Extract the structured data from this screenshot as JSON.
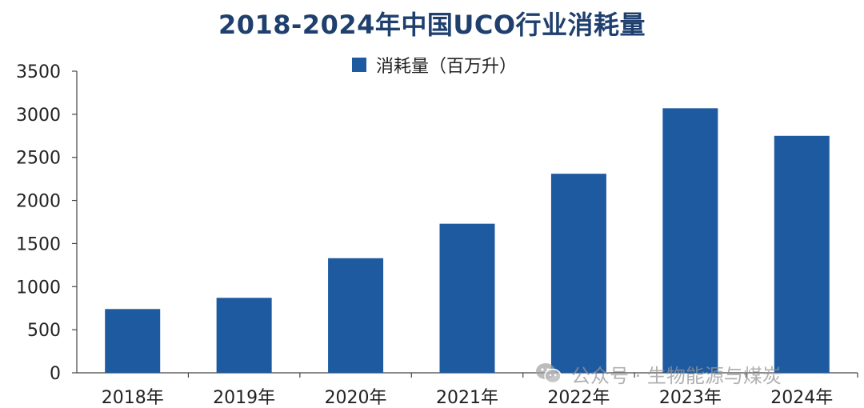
{
  "chart_data": {
    "type": "bar",
    "title": "2018-2024年中国UCO行业消耗量",
    "categories": [
      "2018年",
      "2019年",
      "2020年",
      "2021年",
      "2022年",
      "2023年",
      "2024年"
    ],
    "series": [
      {
        "name": "消耗量（百万升）",
        "values": [
          740,
          870,
          1330,
          1730,
          2310,
          3070,
          2750
        ]
      }
    ],
    "ylim": [
      0,
      3500
    ],
    "yticks": [
      "0",
      "500",
      "1000",
      "1500",
      "2000",
      "2500",
      "3000",
      "3500"
    ],
    "grid": false,
    "legend_position": "top-center",
    "colors": {
      "bar": "#1e5aa0",
      "axis": "#444444",
      "title": "#1f3f6e"
    }
  },
  "watermark": {
    "text": "公众号 · 生物能源与煤炭",
    "icon": "wechat-icon"
  }
}
